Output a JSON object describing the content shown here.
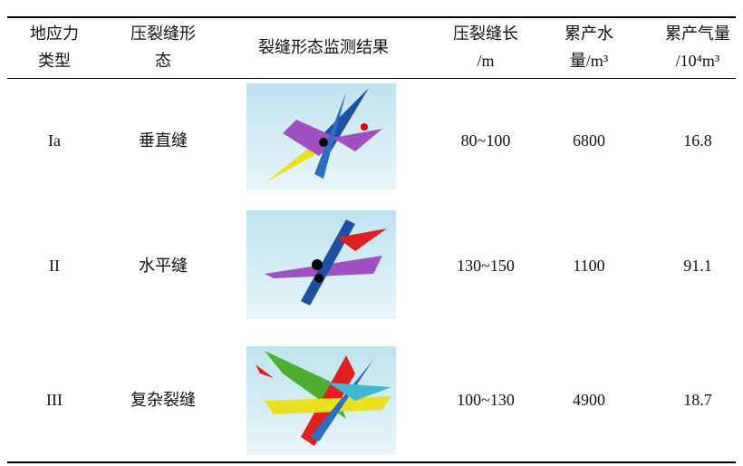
{
  "header": {
    "columns": [
      [
        "地应力",
        "类型"
      ],
      [
        "压裂缝形",
        "态"
      ],
      [
        "裂缝形态监测结果"
      ],
      [
        "压裂缝长",
        "/m"
      ],
      [
        "累产水",
        "量/m³"
      ],
      [
        "累产气量",
        "/10⁴m³"
      ]
    ]
  },
  "table": {
    "rows": [
      [
        "Ia",
        "垂直缝",
        "80~100",
        "6800",
        "16.8"
      ],
      [
        "II",
        "水平缝",
        "130~150",
        "1100",
        "91.1"
      ],
      [
        "III",
        "复杂裂缝",
        "100~130",
        "4900",
        "18.7"
      ]
    ]
  }
}
